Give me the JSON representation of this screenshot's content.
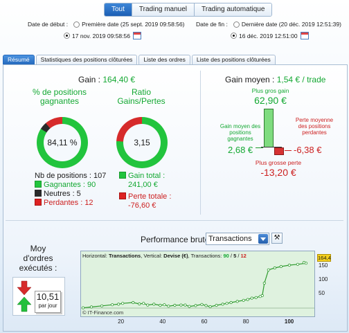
{
  "tabs_mode": [
    {
      "label": "Tout",
      "active": true
    },
    {
      "label": "Trading manuel",
      "active": false
    },
    {
      "label": "Trading automatique",
      "active": false
    }
  ],
  "dates": {
    "start_label": "Date de début :",
    "start_opt1": "Première date (25 sept. 2019 09:58:56)",
    "start_opt2": "17 nov. 2019 09:58:56",
    "end_label": "Date de fin :",
    "end_opt1": "Dernière date (20 déc. 2019 12:51:39)",
    "end_opt2": "16 déc. 2019 12:51:00"
  },
  "tabs": [
    {
      "label": "Résumé",
      "active": true
    },
    {
      "label": "Statistiques des positions clôturées",
      "active": false
    },
    {
      "label": "Liste des ordres",
      "active": false
    },
    {
      "label": "Liste des positions clôturées",
      "active": false
    }
  ],
  "summary": {
    "gain_label": "Gain :",
    "gain_value": "164,40 €",
    "pct_title": "% de positions gagnantes",
    "pct_value": "84,11 %",
    "pct_fraction": 0.8411,
    "ratio_title": "Ratio Gains/Pertes",
    "ratio_value": "3,15",
    "ratio_fraction": 0.759,
    "nb_positions": "Nb de positions : 107",
    "gagnantes": "Gagnantes : 90",
    "neutres": "Neutres : 5",
    "perdantes": "Perdantes : 12",
    "gain_total_label": "Gain total :",
    "gain_total_value": "241,00 €",
    "perte_totale_label": "Perte totale :",
    "perte_totale_value": "-76,60 €"
  },
  "gain_moyen": {
    "label": "Gain moyen :",
    "value": "1,54 € / trade",
    "plus_gros_gain_label": "Plus gros gain",
    "plus_gros_gain_value": "62,90 €",
    "gain_moyen_pos_label": "Gain moyen des positions gagnantes",
    "gain_moyen_pos_value": "2,68 €",
    "perte_moyenne_label": "Perte moyenne des positions perdantes",
    "perte_moyenne_value": "-6,38 €",
    "plus_grosse_perte_label": "Plus grosse perte",
    "plus_grosse_perte_value": "-13,20 €"
  },
  "moy_ordres": {
    "label": "Moy d'ordres exécutés :",
    "value": "10,51",
    "unit": "par jour"
  },
  "performance": {
    "title": "Performance brute",
    "select_value": "Transactions",
    "header_prefix": "Horizontal: ",
    "header_h": "Transactions",
    "header_mid": ", Vertical: ",
    "header_v": "Devise (€)",
    "header_tx": ", Transactions: ",
    "tx_win": "90",
    "tx_sep1": " / ",
    "tx_neutral": "5",
    "tx_sep2": " / ",
    "tx_loss": "12",
    "watermark": "© IT-Finance.com",
    "last_value_badge": "164,4",
    "y_ticks": [
      "150",
      "100",
      "50"
    ],
    "x_ticks": [
      "20",
      "40",
      "60",
      "80",
      "100"
    ]
  },
  "chart_data": {
    "type": "line",
    "title": "Performance brute",
    "xlabel": "Transactions",
    "ylabel": "Devise (€)",
    "xlim": [
      0,
      112
    ],
    "ylim": [
      -10,
      175
    ],
    "grid": false,
    "x": [
      1,
      5,
      10,
      15,
      18,
      20,
      25,
      28,
      30,
      32,
      35,
      38,
      40,
      42,
      45,
      48,
      50,
      52,
      55,
      58,
      60,
      62,
      65,
      68,
      70,
      72,
      75,
      78,
      80,
      82,
      84,
      86,
      87,
      88,
      90,
      93,
      96,
      100,
      104,
      108,
      107
    ],
    "y": [
      1,
      4,
      8,
      12,
      14,
      17,
      20,
      15,
      17,
      11,
      14,
      10,
      12,
      7,
      10,
      11,
      11,
      6,
      9,
      13,
      9,
      5,
      10,
      14,
      17,
      20,
      24,
      28,
      31,
      36,
      38,
      42,
      45,
      90,
      138,
      145,
      150,
      155,
      158,
      162,
      164.4
    ],
    "colors": {
      "line": "#2c9a2c",
      "background": "#dff2df",
      "marker": "#ffffff"
    }
  }
}
